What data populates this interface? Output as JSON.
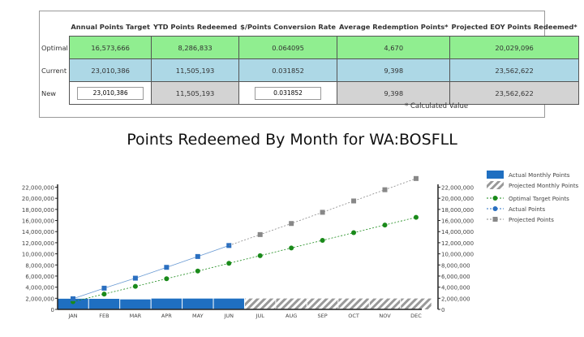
{
  "table": {
    "headers": [
      "Annual Points Target",
      "YTD Points Redeemed",
      "$/Points Conversion Rate",
      "Average Redemption Points*",
      "Projected EOY Points Redeemed*"
    ],
    "rows": [
      {
        "label": "Optimal",
        "values": [
          "16,573,666",
          "8,286,833",
          "0.064095",
          "4,670",
          "20,029,096"
        ]
      },
      {
        "label": "Current",
        "values": [
          "23,010,386",
          "11,505,193",
          "0.031852",
          "9,398",
          "23,562,622"
        ]
      },
      {
        "label": "New",
        "values": [
          "23,010,386",
          "11,505,193",
          "0.031852",
          "9,398",
          "23,562,622"
        ]
      }
    ],
    "note": "* Calculated Value"
  },
  "chart_data": {
    "type": "bar",
    "title": "Points Redeemed By Month for WA:BOSFLL",
    "categories": [
      "JAN",
      "FEB",
      "MAR",
      "APR",
      "MAY",
      "JUN",
      "JUL",
      "AUG",
      "SEP",
      "OCT",
      "NOV",
      "DEC"
    ],
    "ylim": [
      0,
      22000000
    ],
    "yticks": [
      0,
      2000000,
      4000000,
      6000000,
      8000000,
      10000000,
      12000000,
      14000000,
      16000000,
      18000000,
      20000000,
      22000000
    ],
    "ytick_labels": [
      "0",
      "2,000,000",
      "4,000,000",
      "6,000,000",
      "8,000,000",
      "10,000,000",
      "12,000,000",
      "14,000,000",
      "16,000,000",
      "18,000,000",
      "20,000,000",
      "22,000,000"
    ],
    "series": [
      {
        "name": "Actual Monthly Points",
        "kind": "bar",
        "color": "#1f6fc1",
        "values": [
          1920000,
          1900000,
          1800000,
          1950000,
          1950000,
          1950000,
          null,
          null,
          null,
          null,
          null,
          null
        ]
      },
      {
        "name": "Projected Monthly Points",
        "kind": "hatched-bar",
        "color": "#999999",
        "values": [
          null,
          null,
          null,
          null,
          null,
          null,
          1960000,
          1960000,
          1960000,
          1960000,
          1960000,
          1960000
        ]
      },
      {
        "name": "Optimal Target Points",
        "kind": "line-circle",
        "color": "#1a8a1a",
        "values": [
          1380000,
          2760000,
          4140000,
          5520000,
          6900000,
          8290000,
          9670000,
          11050000,
          12430000,
          13810000,
          15190000,
          16570000
        ]
      },
      {
        "name": "Actual Points",
        "kind": "line-circle",
        "color": "#2a6fc0",
        "values": [
          1920000,
          3820000,
          5620000,
          7570000,
          9520000,
          11500000,
          null,
          null,
          null,
          null,
          null,
          null
        ]
      },
      {
        "name": "Projected Points",
        "kind": "line-square",
        "color": "#888888",
        "values": [
          null,
          null,
          null,
          null,
          null,
          11500000,
          13470000,
          15460000,
          17480000,
          19520000,
          21540000,
          23560000
        ]
      }
    ],
    "legend": "right"
  }
}
